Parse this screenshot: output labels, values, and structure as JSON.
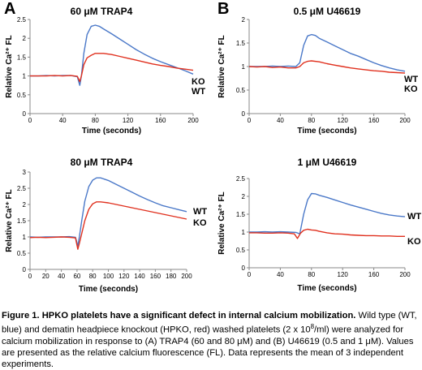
{
  "panel_letters": [
    "A",
    "B"
  ],
  "chart_data": [
    {
      "type": "line",
      "title": "60 μM TRAP4",
      "xlabel": "Time (seconds)",
      "ylabel": "Relative Ca²⁺ FL",
      "xlim": [
        0,
        200
      ],
      "ylim": [
        0,
        2.5
      ],
      "xticks": [
        0,
        40,
        80,
        120,
        160,
        200
      ],
      "yticks": [
        0,
        0.5,
        1,
        1.5,
        2,
        2.5
      ],
      "yticklabels": [
        "0",
        "0.5",
        "1",
        "1.5",
        "2",
        "2.5"
      ],
      "series": [
        {
          "name": "WT",
          "color": "#4a78c8",
          "x": [
            0,
            10,
            20,
            30,
            40,
            50,
            58,
            61,
            63,
            66,
            70,
            75,
            80,
            85,
            90,
            100,
            110,
            120,
            130,
            140,
            150,
            160,
            170,
            180,
            190,
            200
          ],
          "y": [
            1.0,
            1.0,
            1.01,
            1.0,
            1.01,
            1.01,
            0.98,
            0.75,
            1.0,
            1.6,
            2.1,
            2.32,
            2.35,
            2.32,
            2.25,
            2.12,
            1.98,
            1.84,
            1.7,
            1.58,
            1.47,
            1.38,
            1.3,
            1.22,
            1.14,
            1.05
          ]
        },
        {
          "name": "KO",
          "color": "#e0301e",
          "x": [
            0,
            10,
            20,
            30,
            40,
            50,
            58,
            61,
            63,
            66,
            70,
            75,
            80,
            90,
            100,
            110,
            120,
            130,
            140,
            150,
            160,
            170,
            180,
            190,
            200
          ],
          "y": [
            1.0,
            1.0,
            1.0,
            1.01,
            1.0,
            1.01,
            0.99,
            0.85,
            1.0,
            1.3,
            1.48,
            1.55,
            1.6,
            1.6,
            1.57,
            1.52,
            1.47,
            1.42,
            1.37,
            1.32,
            1.28,
            1.25,
            1.21,
            1.18,
            1.15
          ]
        }
      ],
      "series_labels_order": [
        "KO",
        "WT"
      ]
    },
    {
      "type": "line",
      "title": "0.5 μM U46619",
      "xlabel": "Time (seconds)",
      "ylabel": "Relative Ca²⁺ FL",
      "xlim": [
        0,
        200
      ],
      "ylim": [
        0,
        2
      ],
      "xticks": [
        0,
        40,
        80,
        120,
        160,
        200
      ],
      "yticks": [
        0,
        0.5,
        1,
        1.5,
        2
      ],
      "yticklabels": [
        "0",
        "0.5",
        "1",
        "1.5",
        "2"
      ],
      "series": [
        {
          "name": "WT",
          "color": "#4a78c8",
          "x": [
            0,
            10,
            20,
            30,
            40,
            50,
            60,
            65,
            70,
            75,
            80,
            85,
            90,
            100,
            110,
            120,
            130,
            140,
            150,
            160,
            170,
            180,
            190,
            200
          ],
          "y": [
            1.0,
            1.0,
            1.0,
            1.01,
            1.0,
            1.01,
            1.0,
            1.08,
            1.45,
            1.65,
            1.68,
            1.66,
            1.6,
            1.52,
            1.44,
            1.36,
            1.28,
            1.22,
            1.15,
            1.08,
            1.02,
            0.97,
            0.93,
            0.9
          ]
        },
        {
          "name": "KO",
          "color": "#e0301e",
          "x": [
            0,
            10,
            20,
            30,
            40,
            50,
            60,
            65,
            70,
            75,
            80,
            90,
            100,
            110,
            120,
            130,
            140,
            150,
            160,
            170,
            180,
            190,
            200
          ],
          "y": [
            1.0,
            0.99,
            1.0,
            0.98,
            0.99,
            0.97,
            0.97,
            1.0,
            1.08,
            1.11,
            1.12,
            1.1,
            1.06,
            1.03,
            1.0,
            0.97,
            0.95,
            0.93,
            0.91,
            0.9,
            0.88,
            0.87,
            0.86
          ]
        }
      ],
      "series_labels_order": [
        "WT",
        "KO"
      ]
    },
    {
      "type": "line",
      "title": "80 μM TRAP4",
      "xlabel": "Time (seconds)",
      "ylabel": "Relative Ca²⁺ FL",
      "xlim": [
        0,
        200
      ],
      "ylim": [
        0,
        3
      ],
      "xticks": [
        0,
        20,
        40,
        60,
        80,
        100,
        120,
        140,
        160,
        180,
        200
      ],
      "yticks": [
        0,
        0.5,
        1,
        1.5,
        2,
        2.5,
        3
      ],
      "yticklabels": [
        "0",
        "0.5",
        "1",
        "1.5",
        "2",
        "2.5",
        "3"
      ],
      "series": [
        {
          "name": "WT",
          "color": "#4a78c8",
          "x": [
            0,
            10,
            20,
            30,
            40,
            50,
            58,
            61,
            63,
            66,
            70,
            75,
            80,
            85,
            90,
            95,
            100,
            110,
            120,
            130,
            140,
            150,
            160,
            170,
            180,
            190,
            200
          ],
          "y": [
            1.0,
            0.99,
            1.0,
            1.0,
            1.0,
            1.01,
            0.99,
            0.72,
            1.0,
            1.5,
            2.1,
            2.55,
            2.75,
            2.82,
            2.82,
            2.78,
            2.74,
            2.62,
            2.5,
            2.38,
            2.26,
            2.15,
            2.05,
            1.96,
            1.9,
            1.84,
            1.78
          ]
        },
        {
          "name": "KO",
          "color": "#e0301e",
          "x": [
            0,
            10,
            20,
            30,
            40,
            50,
            58,
            61,
            63,
            66,
            70,
            75,
            80,
            85,
            90,
            100,
            110,
            120,
            130,
            140,
            150,
            160,
            170,
            180,
            190,
            200
          ],
          "y": [
            0.98,
            0.99,
            0.98,
            0.99,
            1.0,
            0.99,
            0.97,
            0.62,
            0.8,
            1.1,
            1.5,
            1.85,
            2.02,
            2.08,
            2.08,
            2.05,
            2.0,
            1.95,
            1.9,
            1.85,
            1.8,
            1.75,
            1.7,
            1.65,
            1.6,
            1.55
          ]
        }
      ],
      "series_labels_order": [
        "WT",
        "KO"
      ]
    },
    {
      "type": "line",
      "title": "1 μM U46619",
      "xlabel": "Time (seconds)",
      "ylabel": "Relative Ca²⁺ FL",
      "xlim": [
        0,
        200
      ],
      "ylim": [
        0,
        2.5
      ],
      "xticks": [
        0,
        40,
        80,
        120,
        160,
        200
      ],
      "yticks": [
        0,
        0.5,
        1,
        1.5,
        2,
        2.5
      ],
      "yticklabels": [
        "0",
        "0.5",
        "1",
        "1.5",
        "2",
        "2.5"
      ],
      "series": [
        {
          "name": "WT",
          "color": "#4a78c8",
          "x": [
            0,
            10,
            20,
            30,
            40,
            50,
            60,
            65,
            70,
            75,
            80,
            85,
            90,
            100,
            110,
            120,
            130,
            140,
            150,
            160,
            170,
            180,
            190,
            200
          ],
          "y": [
            1.0,
            1.0,
            1.01,
            1.0,
            1.01,
            1.0,
            0.99,
            0.95,
            1.5,
            1.9,
            2.08,
            2.07,
            2.03,
            1.97,
            1.9,
            1.83,
            1.76,
            1.7,
            1.64,
            1.58,
            1.52,
            1.48,
            1.45,
            1.43
          ]
        },
        {
          "name": "KO",
          "color": "#e0301e",
          "x": [
            0,
            10,
            20,
            30,
            40,
            50,
            58,
            62,
            66,
            70,
            75,
            80,
            85,
            90,
            100,
            110,
            120,
            130,
            140,
            150,
            160,
            170,
            180,
            190,
            200
          ],
          "y": [
            0.98,
            0.98,
            0.97,
            0.97,
            0.98,
            0.97,
            0.95,
            0.82,
            0.97,
            1.05,
            1.08,
            1.06,
            1.05,
            1.02,
            0.98,
            0.95,
            0.94,
            0.92,
            0.91,
            0.9,
            0.9,
            0.89,
            0.89,
            0.88,
            0.88
          ]
        }
      ],
      "series_labels_order": [
        "WT",
        "KO"
      ]
    }
  ],
  "caption": {
    "bold": "Figure 1. HPKO platelets have a significant defect in internal calcium mobilization.",
    "text_before_sup": " Wild type (WT, blue) and dematin headpiece knockout (HPKO, red) washed platelets (2 x 10",
    "sup": "8",
    "text_after_sup": "/ml) were analyzed for calcium mobilization in response to (A) TRAP4 (60 and 80 μM) and (B) U46619 (0.5 and 1 μM). Values are presented as the relative calcium fluorescence (FL). Data represents the mean of 3 independent experiments."
  }
}
